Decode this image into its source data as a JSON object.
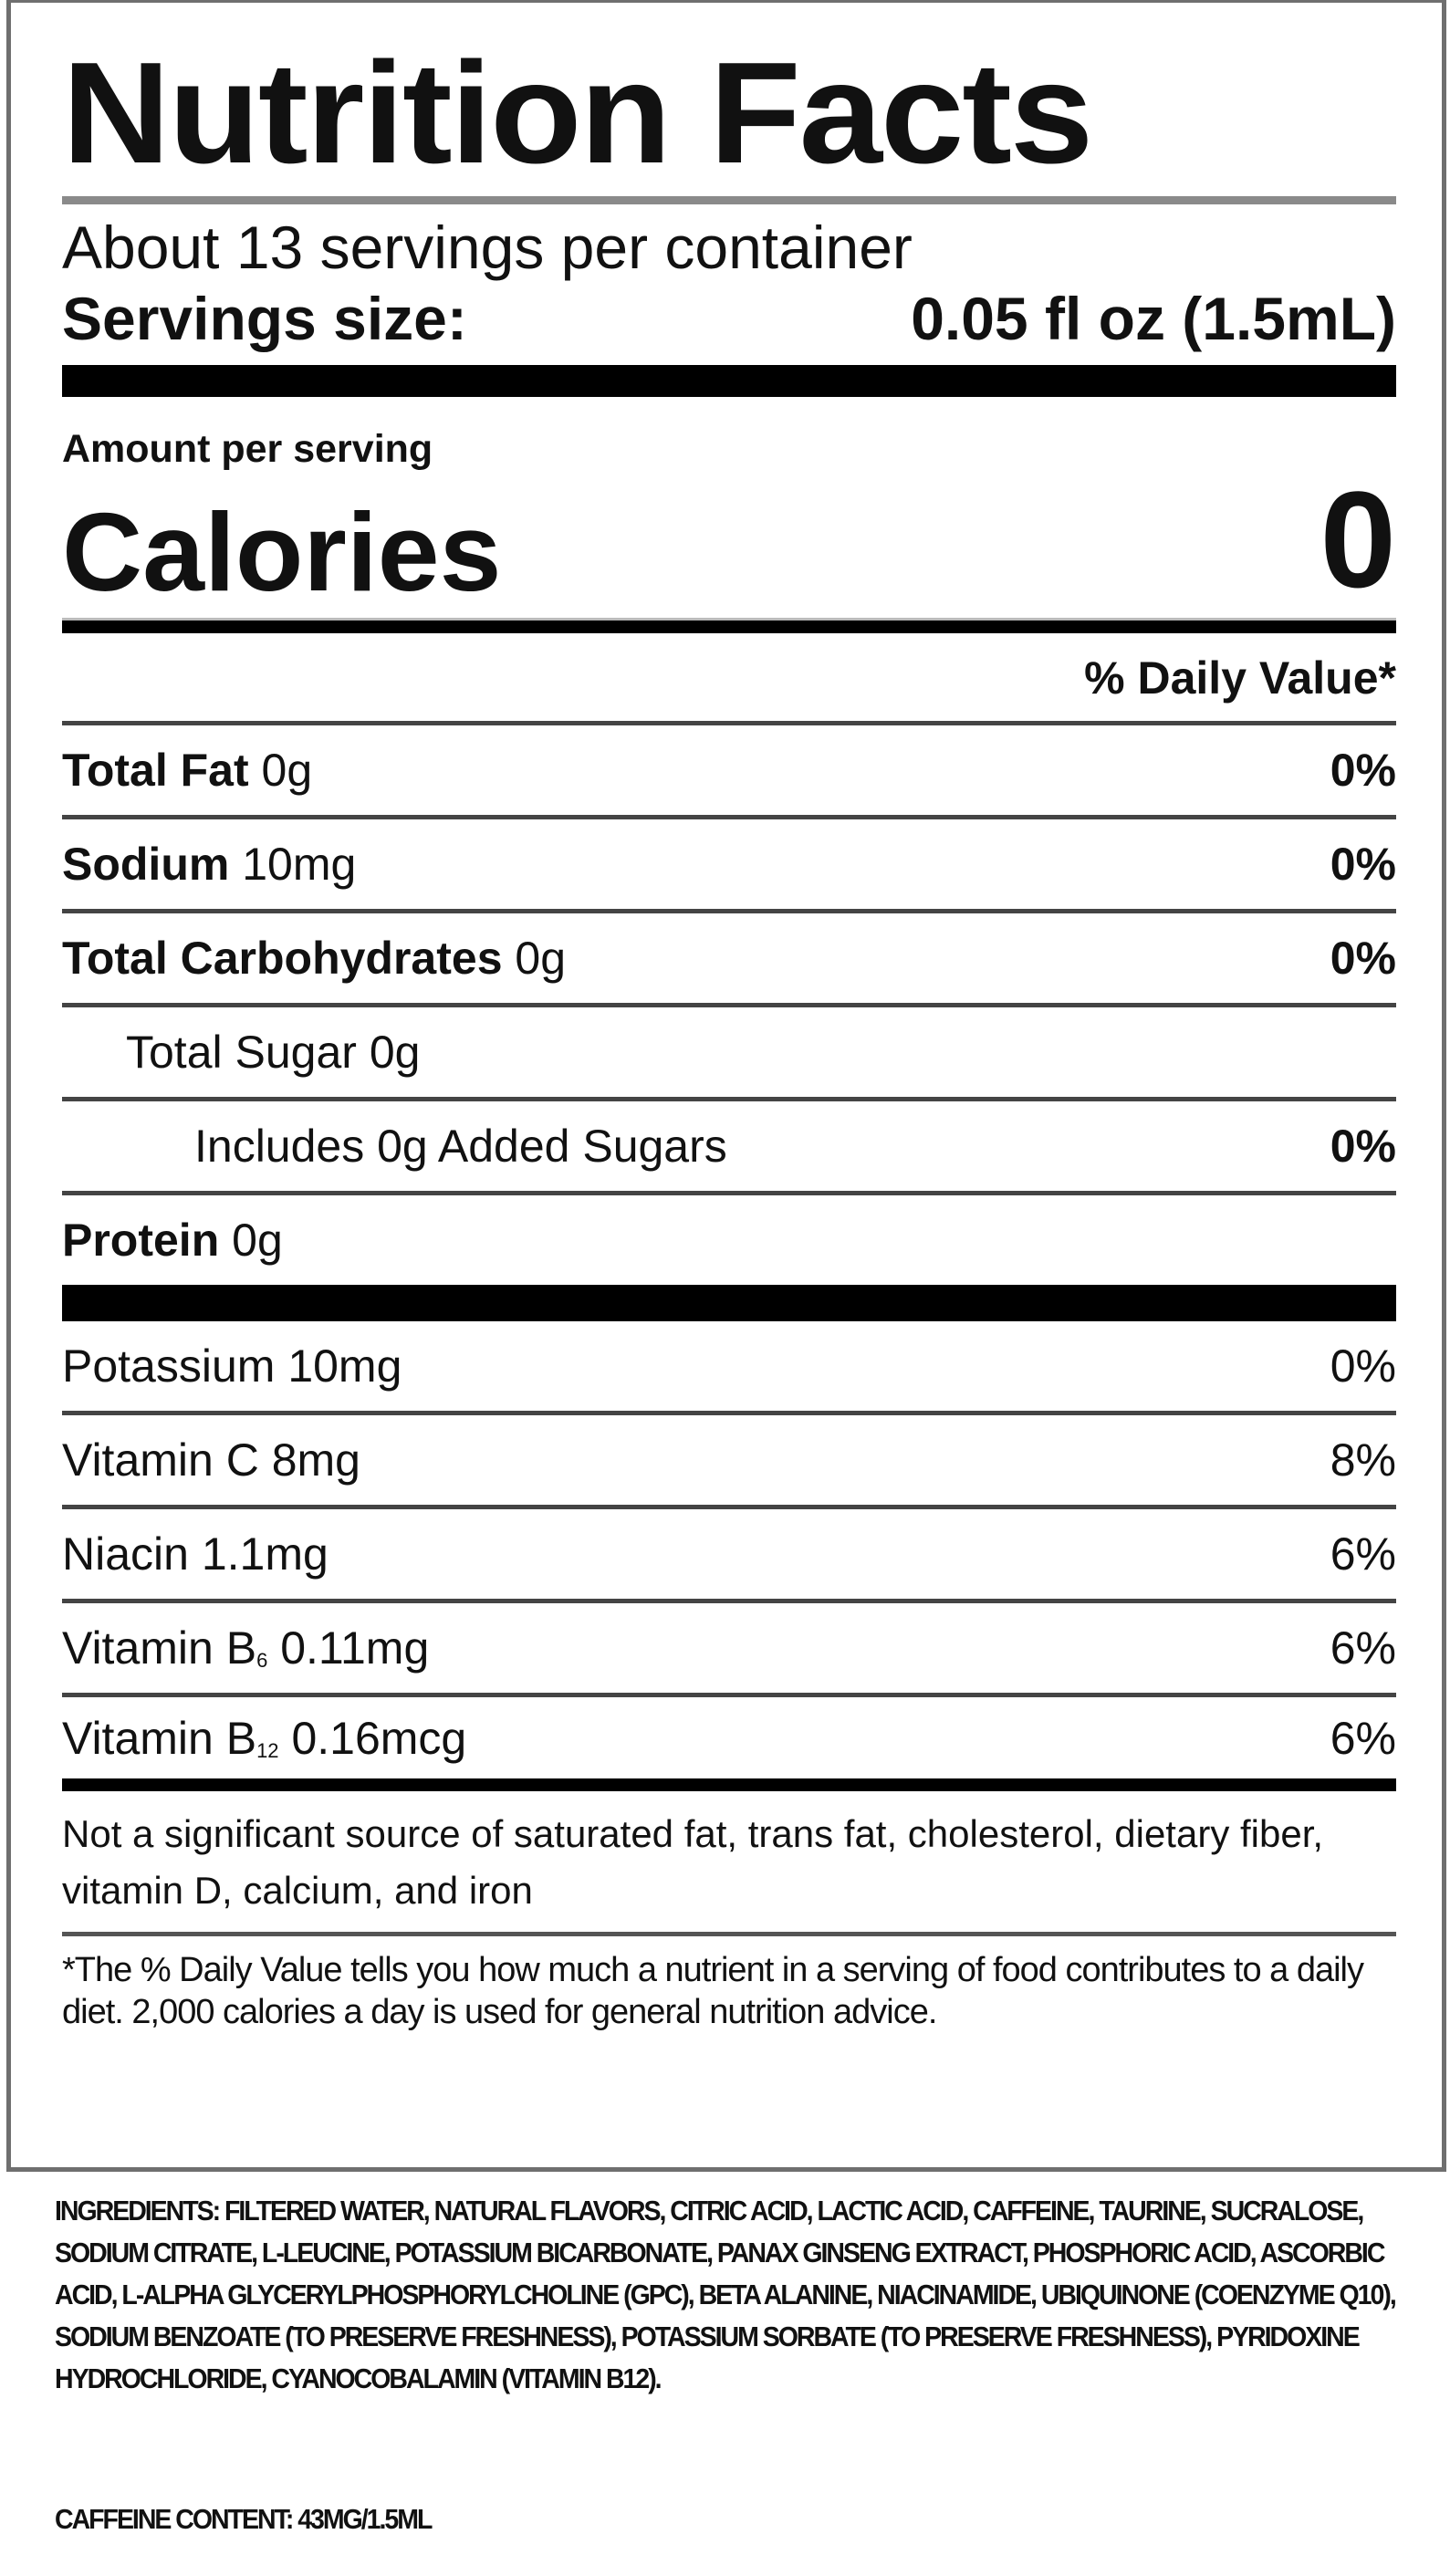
{
  "title": "Nutrition Facts",
  "servings_per_container": "About 13 servings per container",
  "serving_size": {
    "label": "Servings size:",
    "value": "0.05 fl oz (1.5mL)"
  },
  "amount_per_serving": "Amount per serving",
  "calories": {
    "label": "Calories",
    "value": "0"
  },
  "daily_value_header": "% Daily Value*",
  "nutrients": [
    {
      "name": "Total Fat",
      "amount": "0g",
      "dv": "0%"
    },
    {
      "name": "Sodium",
      "amount": "10mg",
      "dv": "0%"
    },
    {
      "name": "Total Carbohydrates",
      "amount": "0g",
      "dv": "0%"
    },
    {
      "label": "Total Sugar 0g",
      "dv": ""
    },
    {
      "label": "Includes 0g Added Sugars",
      "dv": "0%"
    },
    {
      "name": "Protein",
      "amount": "0g",
      "dv": ""
    }
  ],
  "vitamins": [
    {
      "label": "Potassium 10mg",
      "dv": "0%"
    },
    {
      "label": "Vitamin C 8mg",
      "dv": "8%"
    },
    {
      "label": "Niacin 1.1mg",
      "dv": "6%"
    },
    {
      "prefix": "Vitamin B",
      "sub": "6",
      "suffix": " 0.11mg",
      "dv": "6%"
    },
    {
      "prefix": "Vitamin B",
      "sub": "12",
      "suffix": " 0.16mcg",
      "dv": "6%"
    }
  ],
  "not_significant": "Not a significant source of saturated fat, trans fat, cholesterol, dietary fiber, vitamin D, calcium, and iron",
  "footnote": "*The % Daily Value tells you how much a nutrient in a serving of food contributes to a daily diet. 2,000 calories a day is used for general nutrition advice.",
  "ingredients": "INGREDIENTS: FILTERED WATER, NATURAL FLAVORS, CITRIC ACID, LACTIC ACID, CAFFEINE, TAURINE, SUCRALOSE, SODIUM CITRATE, L-LEUCINE, POTASSIUM BICARBONATE, PANAX GINSENG EXTRACT, PHOSPHORIC ACID, ASCORBIC ACID, L-ALPHA GLYCERYLPHOSPHORYLCHOLINE (GPC), BETA ALANINE, NIACINAMIDE, UBIQUINONE (COENZYME Q10), SODIUM BENZOATE (TO PRESERVE FRESHNESS), POTASSIUM SORBATE (TO PRESERVE FRESHNESS), PYRIDOXINE HYDROCHLORIDE, CYANOCOBALAMIN (VITAMIN B12).",
  "caffeine_content": "CAFFEINE CONTENT: 43MG/1.5ML"
}
